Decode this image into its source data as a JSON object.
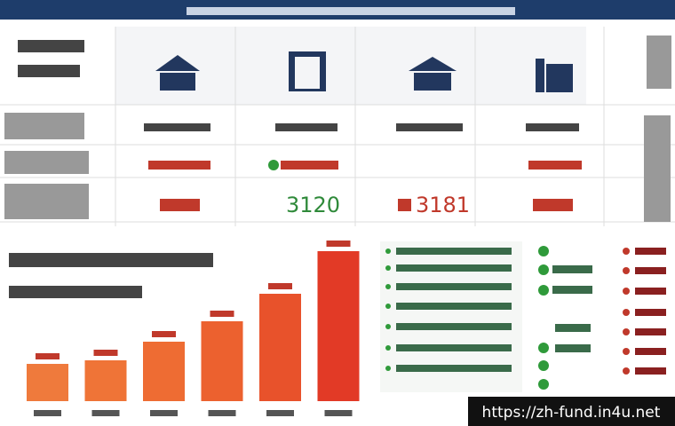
{
  "table": {
    "highlights": [
      "3120",
      "3181"
    ]
  },
  "chart_data": {
    "type": "bar",
    "values": [
      42,
      46,
      67,
      90,
      121,
      169
    ],
    "colors": [
      "#ef7a3c",
      "#ef7437",
      "#ee6c33",
      "#ec612f",
      "#e8522b",
      "#e23a26"
    ]
  },
  "watermark": "https://zh-fund.in4u.net"
}
